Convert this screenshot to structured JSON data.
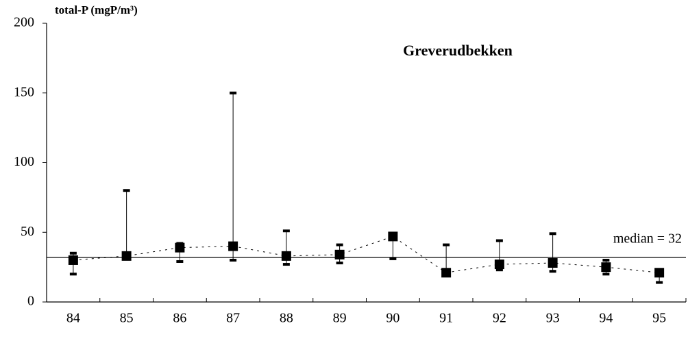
{
  "chart_data": {
    "type": "range",
    "title": "Greverudbekken",
    "y_label": "total-P (mgP/m³)",
    "categories": [
      "84",
      "85",
      "86",
      "87",
      "88",
      "89",
      "90",
      "91",
      "92",
      "93",
      "94",
      "95"
    ],
    "values": [
      30,
      33,
      39,
      40,
      33,
      34,
      47,
      21,
      27,
      28,
      25,
      21
    ],
    "min": [
      20,
      33,
      29,
      30,
      27,
      28,
      31,
      21,
      23,
      22,
      20,
      14
    ],
    "max": [
      35,
      80,
      42,
      150,
      51,
      41,
      48,
      41,
      44,
      49,
      30,
      21
    ],
    "median": 32,
    "median_label": "median = 32",
    "color": "#000000",
    "ylim": [
      0,
      200
    ],
    "yticks": [
      0,
      50,
      100,
      150,
      200
    ]
  }
}
